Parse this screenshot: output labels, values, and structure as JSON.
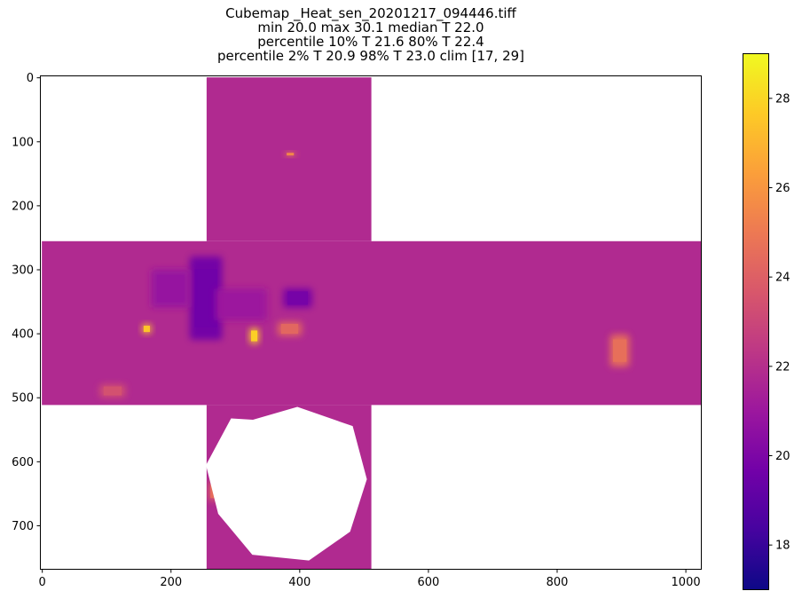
{
  "chart_data": {
    "type": "heatmap",
    "title_lines": [
      "Cubemap _Heat_sen_20201217_094446.tiff",
      "min 20.0 max 30.1 median T 22.0",
      "percentile 10% T 21.6 80% T 22.4",
      "percentile 2% T 20.9 98% T 23.0 clim [17, 29]"
    ],
    "colormap": "plasma",
    "colormap_stops": [
      "#0d0887",
      "#46039f",
      "#7201a8",
      "#9c179e",
      "#bd3786",
      "#d8576b",
      "#ed7953",
      "#fb9f3a",
      "#fdca26",
      "#f0f921"
    ],
    "clim": [
      17,
      29
    ],
    "image_extent": {
      "width": 1024,
      "height": 768
    },
    "xlim": [
      -3,
      1024
    ],
    "ylim": [
      768,
      -3
    ],
    "x_ticks": [
      0,
      200,
      400,
      600,
      800,
      1000
    ],
    "y_ticks": [
      0,
      100,
      200,
      300,
      400,
      500,
      600,
      700
    ],
    "colorbar_ticks": [
      18,
      20,
      22,
      24,
      26,
      28
    ],
    "background_value": 21.8,
    "faces": [
      {
        "name": "top",
        "x": [
          256,
          512
        ],
        "y": [
          0,
          256
        ]
      },
      {
        "name": "middle",
        "x": [
          0,
          1024
        ],
        "y": [
          256,
          512
        ]
      },
      {
        "name": "bottom",
        "x": [
          256,
          512
        ],
        "y": [
          512,
          768
        ]
      }
    ],
    "hole_polygon": [
      [
        328,
        535
      ],
      [
        397,
        515
      ],
      [
        483,
        545
      ],
      [
        505,
        628
      ],
      [
        479,
        710
      ],
      [
        415,
        755
      ],
      [
        327,
        746
      ],
      [
        274,
        682
      ],
      [
        255,
        606
      ],
      [
        294,
        533
      ]
    ],
    "features": [
      {
        "shape": "rect",
        "x": 156,
        "y": 386,
        "w": 14,
        "h": 14,
        "value": 27.5
      },
      {
        "shape": "rect",
        "x": 323,
        "y": 392,
        "w": 14,
        "h": 24,
        "value": 27.8
      },
      {
        "shape": "rect",
        "x": 366,
        "y": 382,
        "w": 38,
        "h": 22,
        "value": 24.3
      },
      {
        "shape": "rect",
        "x": 883,
        "y": 402,
        "w": 30,
        "h": 50,
        "value": 24.6
      },
      {
        "shape": "rect",
        "x": 378,
        "y": 117,
        "w": 16,
        "h": 6,
        "value": 25.5
      },
      {
        "shape": "rect",
        "x": 230,
        "y": 280,
        "w": 50,
        "h": 130,
        "value": 19.6
      },
      {
        "shape": "rect",
        "x": 375,
        "y": 330,
        "w": 45,
        "h": 30,
        "value": 19.8
      },
      {
        "shape": "rect",
        "x": 170,
        "y": 300,
        "w": 60,
        "h": 60,
        "value": 20.8
      },
      {
        "shape": "rect",
        "x": 270,
        "y": 330,
        "w": 80,
        "h": 50,
        "value": 21.0
      },
      {
        "shape": "rect",
        "x": 260,
        "y": 632,
        "w": 12,
        "h": 30,
        "value": 24.5
      },
      {
        "shape": "rect",
        "x": 90,
        "y": 480,
        "w": 40,
        "h": 20,
        "value": 23.4
      }
    ]
  }
}
